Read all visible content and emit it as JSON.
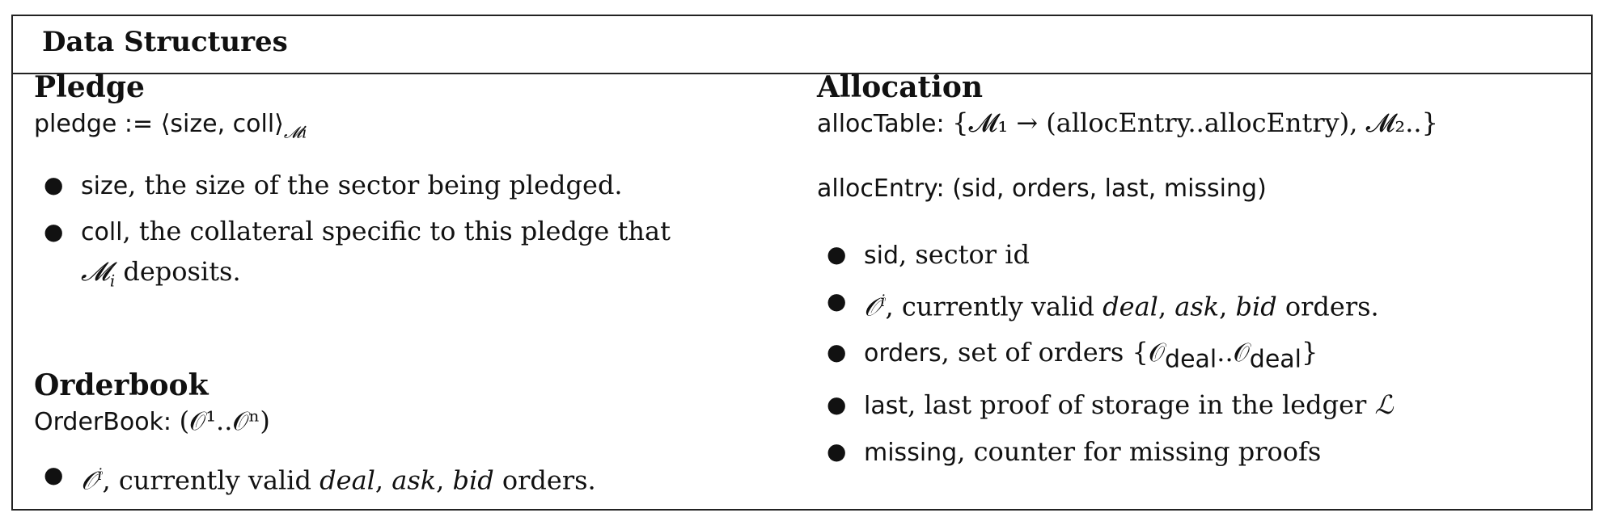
{
  "header": {
    "title": "Data Structures"
  },
  "pledge": {
    "title": "Pledge",
    "formula_lhs": "pledge := ",
    "formula_tuple": "⟨size, coll⟩",
    "formula_sub": "𝓜i",
    "items": [
      {
        "term": "size",
        "text": ", the size of the sector being pledged."
      },
      {
        "term": "coll",
        "text": ", the collateral specific to this pledge that",
        "text2": "𝓜",
        "sub2": "i",
        "text3": " deposits."
      }
    ]
  },
  "orderbook": {
    "title": "Orderbook",
    "formula_lhs": "OrderBook: ",
    "formula_rhs": "(𝒪¹..𝒪ⁿ)",
    "items": [
      {
        "term": "𝒪",
        "sup": "i",
        "text_pre": ", currently valid ",
        "deal": "deal",
        "sep1": ", ",
        "ask": "ask",
        "sep2": ", ",
        "bid": "bid",
        "text_post": " orders."
      }
    ]
  },
  "allocation": {
    "title": "Allocation",
    "table_lhs": "allocTable: ",
    "table_rhs": "{𝓜₁ → (allocEntry..allocEntry), 𝓜₂..}",
    "entry_lhs": "allocEntry: ",
    "entry_rhs": "(sid, orders, last, missing)",
    "items": [
      {
        "term": "sid",
        "text": ", sector id"
      },
      {
        "term": "𝒪",
        "sup": "i",
        "text_pre": ", currently valid ",
        "deal": "deal",
        "sep1": ", ",
        "ask": "ask",
        "sep2": ", ",
        "bid": "bid",
        "text_post": " orders."
      },
      {
        "term": "orders",
        "text": ", set of orders ",
        "math": "{𝒪",
        "sub1": "deal",
        "mid": "..𝒪",
        "sub2": "deal",
        "end": "}"
      },
      {
        "term": "last",
        "text": ", last proof of storage in the ledger ",
        "math": "ℒ"
      },
      {
        "term": "missing",
        "text": ", counter for missing proofs"
      }
    ]
  },
  "bullet": "●"
}
